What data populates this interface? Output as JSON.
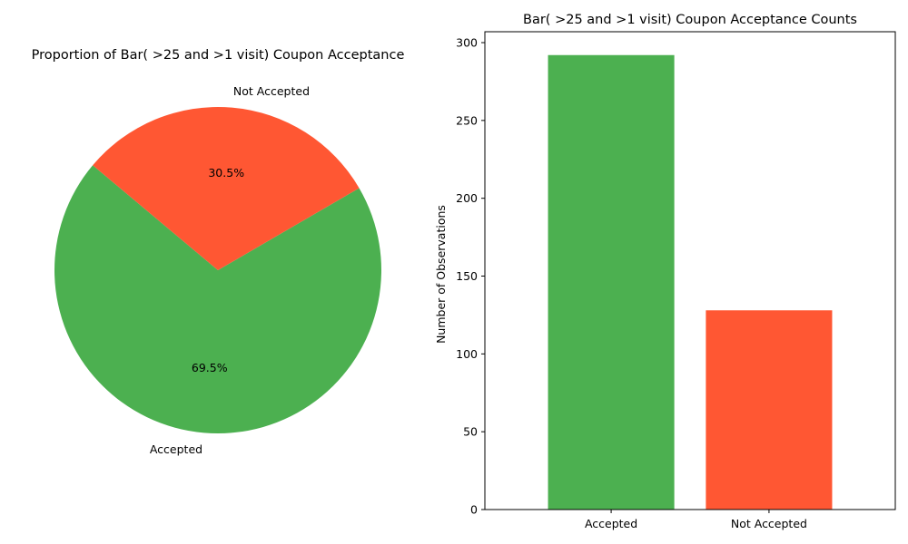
{
  "chart_data": [
    {
      "type": "pie",
      "title": "Proportion of Bar( >25 and >1 visit) Coupon Acceptance",
      "slices": [
        {
          "label": "Accepted",
          "value": 69.5,
          "pct_label": "69.5%",
          "color": "#4CB050"
        },
        {
          "label": "Not Accepted",
          "value": 30.5,
          "pct_label": "30.5%",
          "color": "#FF5733"
        }
      ],
      "start_angle_deg": 140
    },
    {
      "type": "bar",
      "title": "Bar( >25 and >1 visit) Coupon Acceptance Counts",
      "categories": [
        "Accepted",
        "Not Accepted"
      ],
      "values": [
        292,
        128
      ],
      "colors": [
        "#4CB050",
        "#FF5733"
      ],
      "xlabel": "",
      "ylabel": "Number of Observations",
      "ylim": [
        0,
        307
      ],
      "yticks": [
        0,
        50,
        100,
        150,
        200,
        250,
        300
      ],
      "grid": false
    }
  ]
}
